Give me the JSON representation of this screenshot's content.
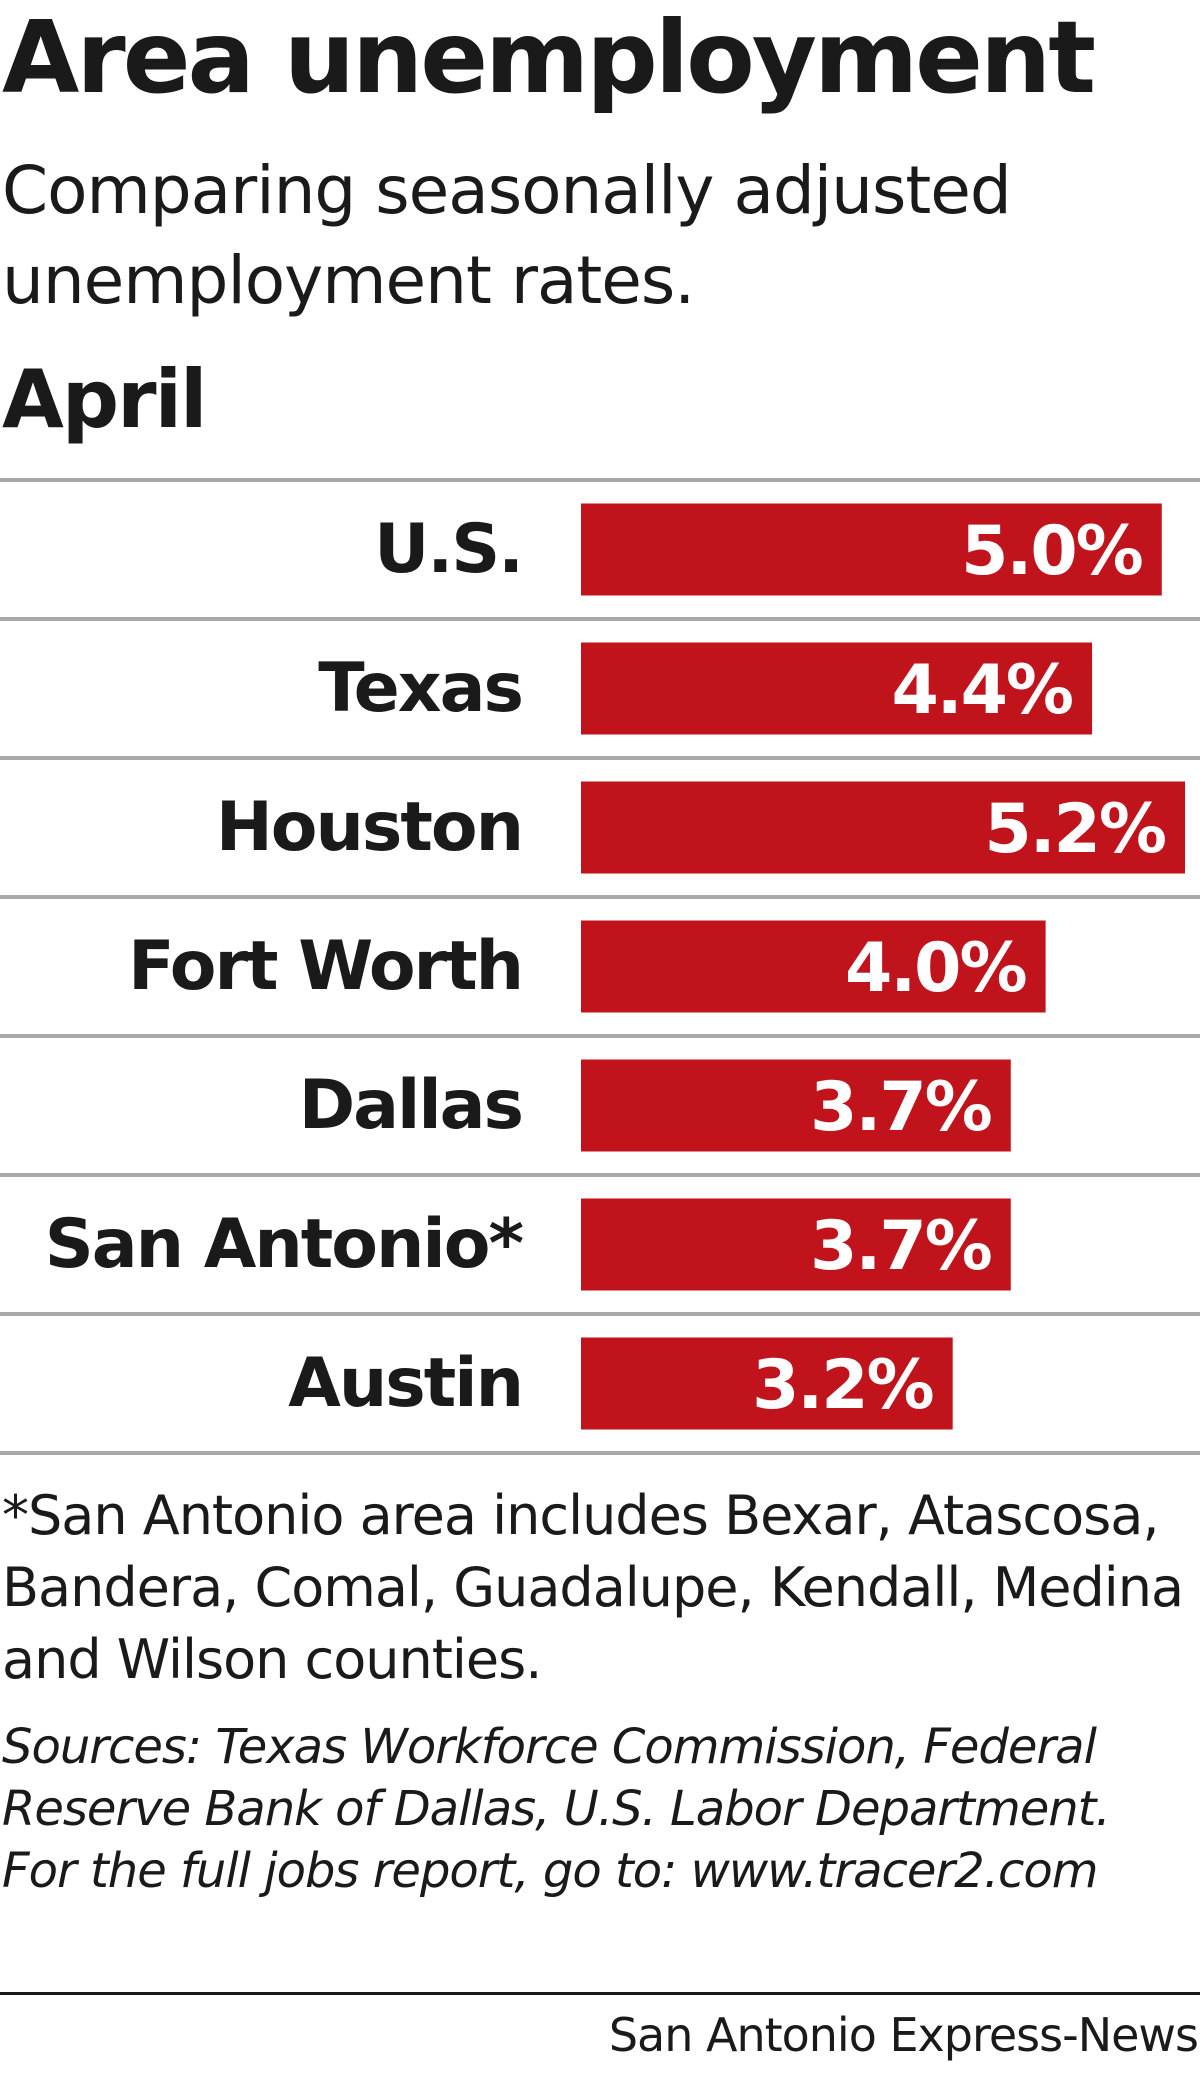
{
  "chart_data": {
    "type": "bar",
    "orientation": "horizontal",
    "title": "Area unemployment",
    "subtitle": "Comparing seasonally adjusted unemployment rates.",
    "period": "April",
    "categories": [
      "U.S.",
      "Texas",
      "Houston",
      "Fort Worth",
      "Dallas",
      "San Antonio*",
      "Austin"
    ],
    "values": [
      5.0,
      4.4,
      5.2,
      4.0,
      3.7,
      3.7,
      3.2
    ],
    "value_labels": [
      "5.0%",
      "4.4%",
      "5.2%",
      "4.0%",
      "3.7%",
      "3.7%",
      "3.2%"
    ],
    "unit": "%",
    "xlim": [
      0,
      5.2
    ],
    "grid": false,
    "bar_color": "#c0131b",
    "rule_color": "#a8a8a8"
  },
  "footnote": "*San Antonio area includes Bexar, Atascosa, Bandera, Comal, Guadalupe, Kendall, Medina and Wilson counties.",
  "sources": "Sources: Texas Workforce Commission, Federal Reserve Bank of Dallas, U.S. Labor Department. For the full jobs report, go to: www.tracer2.com",
  "credit": "San Antonio Express-News"
}
